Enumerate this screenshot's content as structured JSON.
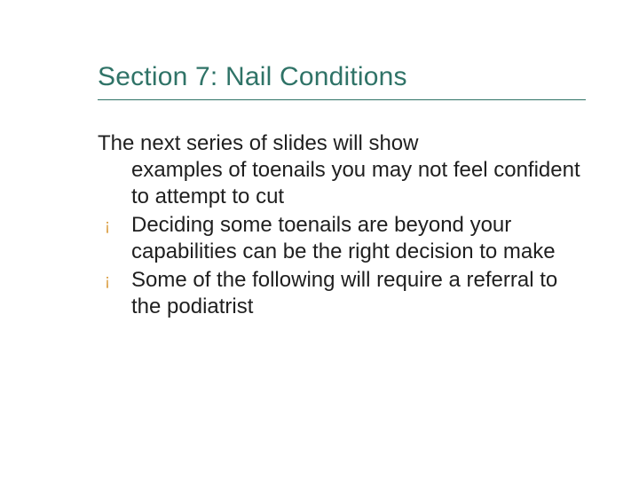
{
  "title": "Section 7: Nail Conditions",
  "intro_first": "The next series of slides will show",
  "intro_rest": "examples of toenails you may not feel confident to attempt to cut",
  "bullets": [
    "Deciding some toenails are beyond your capabilities can be the right decision to make",
    "Some of the following will require a referral to the podiatrist"
  ],
  "colors": {
    "title": "#2f7367",
    "divider": "#2f7367",
    "body_text": "#1f1f1f",
    "bullet_mark": "#d99a3a",
    "background": "#ffffff"
  },
  "typography": {
    "font_family": "Verdana",
    "title_fontsize": 30,
    "body_fontsize": 24,
    "line_height": 1.25
  },
  "bullet_glyph": "¡"
}
